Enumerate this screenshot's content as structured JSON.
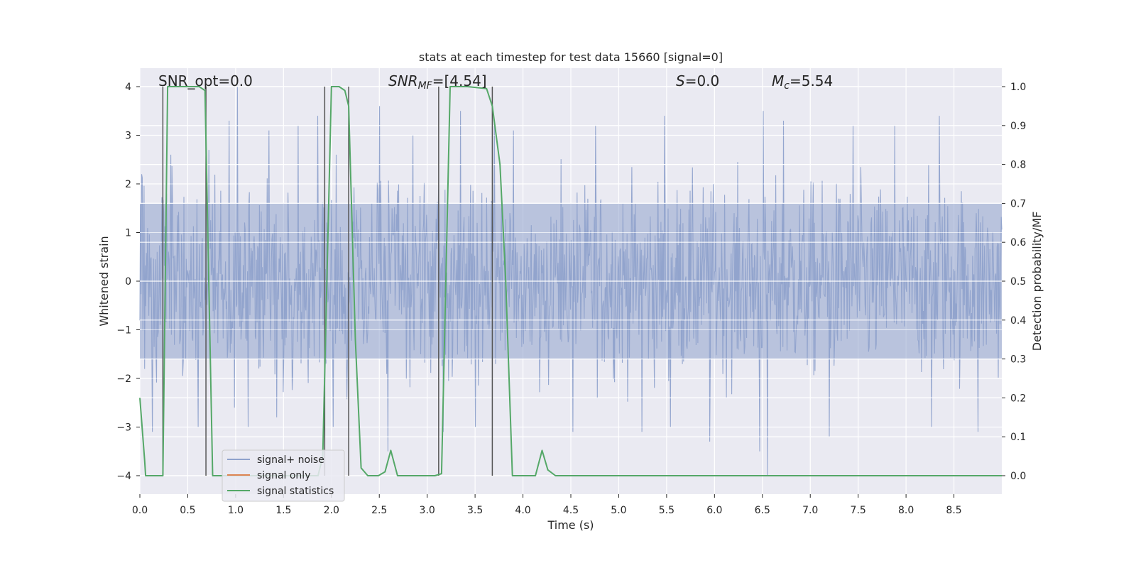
{
  "chart_data": {
    "type": "line",
    "title": "stats at each timestep for test data 15660 [signal=0]",
    "xlabel": "Time (s)",
    "ylabel": "Whitened strain",
    "ylabel_right": "Detection probability/MF",
    "xlim": [
      0,
      9.0
    ],
    "ylim": [
      -4.38,
      4.38
    ],
    "ylim_right": [
      -0.0475,
      1.0475
    ],
    "x_ticks": [
      0.0,
      0.5,
      1.0,
      1.5,
      2.0,
      2.5,
      3.0,
      3.5,
      4.0,
      4.5,
      5.0,
      5.5,
      6.0,
      6.5,
      7.0,
      7.5,
      8.0,
      8.5
    ],
    "x_tick_labels": [
      "0.0",
      "0.5",
      "1.0",
      "1.5",
      "2.0",
      "2.5",
      "3.0",
      "3.5",
      "4.0",
      "4.5",
      "5.0",
      "5.5",
      "6.0",
      "6.5",
      "7.0",
      "7.5",
      "8.0",
      "8.5"
    ],
    "y_ticks": [
      -4,
      -3,
      -2,
      -1,
      0,
      1,
      2,
      3,
      4
    ],
    "y_tick_labels": [
      "−4",
      "−3",
      "−2",
      "−1",
      "0",
      "1",
      "2",
      "3",
      "4"
    ],
    "y_ticks_right": [
      0.0,
      0.1,
      0.2,
      0.3,
      0.4,
      0.5,
      0.6,
      0.7,
      0.8,
      0.9,
      1.0
    ],
    "y_tick_labels_right": [
      "0.0",
      "0.1",
      "0.2",
      "0.3",
      "0.4",
      "0.5",
      "0.6",
      "0.7",
      "0.8",
      "0.9",
      "1.0"
    ],
    "grid": true,
    "legend_position": "lower-left",
    "annotations": {
      "snr_opt": "SNR_opt=0.0",
      "snr_mf_label": "SNR",
      "snr_mf_sub": "MF",
      "snr_mf_value": "=[4.54]",
      "s_label": "S",
      "s_value": "=0.0",
      "mc_label": "M",
      "mc_sub": "c",
      "mc_value": "=5.54"
    },
    "vertical_markers_x": [
      0.24,
      0.69,
      1.93,
      2.18,
      3.12,
      3.68
    ],
    "series": [
      {
        "name": "signal+ noise",
        "color": "#8fa2cc",
        "kind": "noise",
        "amplitude_envelope": 1.6,
        "extreme_peaks": [
          {
            "x": 0.02,
            "y": 2.2
          },
          {
            "x": 0.13,
            "y": -3.1
          },
          {
            "x": 0.32,
            "y": 2.6
          },
          {
            "x": 0.61,
            "y": -3.0
          },
          {
            "x": 0.72,
            "y": 2.7
          },
          {
            "x": 0.93,
            "y": 3.3
          },
          {
            "x": 1.02,
            "y": 4.0
          },
          {
            "x": 1.13,
            "y": -3.0
          },
          {
            "x": 1.35,
            "y": 3.1
          },
          {
            "x": 1.43,
            "y": -2.8
          },
          {
            "x": 1.65,
            "y": 3.2
          },
          {
            "x": 1.86,
            "y": 3.4
          },
          {
            "x": 2.02,
            "y": -3.0
          },
          {
            "x": 2.5,
            "y": 3.6
          },
          {
            "x": 2.59,
            "y": -3.5
          },
          {
            "x": 2.85,
            "y": 3.0
          },
          {
            "x": 3.17,
            "y": -3.1
          },
          {
            "x": 3.35,
            "y": 3.5
          },
          {
            "x": 3.5,
            "y": -3.0
          },
          {
            "x": 3.7,
            "y": 3.3
          },
          {
            "x": 3.9,
            "y": 3.1
          },
          {
            "x": 4.52,
            "y": -3.1
          },
          {
            "x": 4.76,
            "y": 3.2
          },
          {
            "x": 5.24,
            "y": -3.1
          },
          {
            "x": 5.48,
            "y": 3.4
          },
          {
            "x": 5.54,
            "y": -3.0
          },
          {
            "x": 5.95,
            "y": -3.3
          },
          {
            "x": 6.47,
            "y": -3.5
          },
          {
            "x": 6.51,
            "y": 3.5
          },
          {
            "x": 6.55,
            "y": -4.0
          },
          {
            "x": 6.72,
            "y": 3.3
          },
          {
            "x": 7.2,
            "y": -3.2
          },
          {
            "x": 7.45,
            "y": 3.2
          },
          {
            "x": 7.88,
            "y": 3.2
          },
          {
            "x": 8.27,
            "y": -3.0
          },
          {
            "x": 8.35,
            "y": 3.4
          },
          {
            "x": 8.75,
            "y": -3.1
          }
        ]
      },
      {
        "name": "signal only",
        "color": "#dd8452",
        "x": [],
        "y": []
      },
      {
        "name": "signal statistics",
        "color": "#55a868",
        "axis": "right",
        "x": [
          0.0,
          0.05,
          0.06,
          0.24,
          0.29,
          0.38,
          0.62,
          0.68,
          0.76,
          1.86,
          1.91,
          2.0,
          2.08,
          2.14,
          2.18,
          2.25,
          2.31,
          2.38,
          2.49,
          2.56,
          2.62,
          2.69,
          3.08,
          3.15,
          3.24,
          3.42,
          3.62,
          3.68,
          3.76,
          3.82,
          3.89,
          3.97,
          4.13,
          4.2,
          4.26,
          4.34,
          9.0
        ],
        "y": [
          0.2,
          0.04,
          0.0,
          0.0,
          1.0,
          1.0,
          1.0,
          0.99,
          0.0,
          0.0,
          0.05,
          1.0,
          1.0,
          0.99,
          0.95,
          0.35,
          0.02,
          0.0,
          0.0,
          0.01,
          0.065,
          0.0,
          0.0,
          0.005,
          1.0,
          1.0,
          0.995,
          0.95,
          0.8,
          0.5,
          0.0,
          0.0,
          0.0,
          0.065,
          0.015,
          0.0,
          0.0
        ]
      }
    ]
  }
}
